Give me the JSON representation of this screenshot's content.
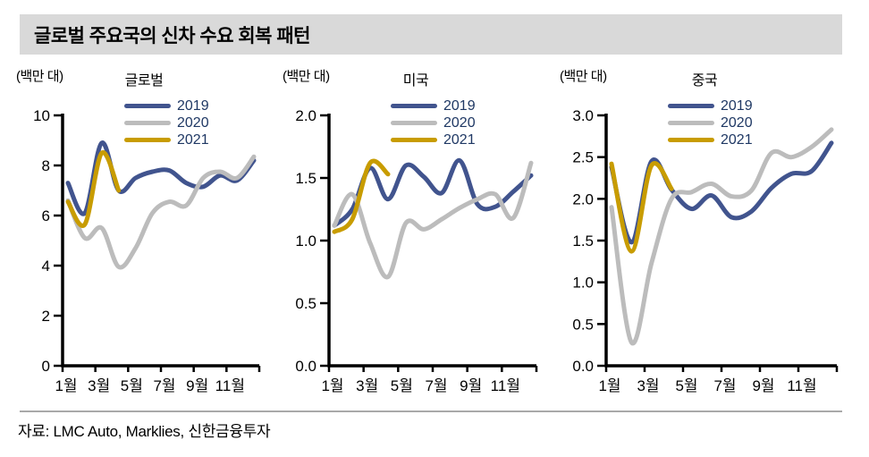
{
  "header": {
    "title": "글로벌 주요국의 신차 수요 회복 패턴"
  },
  "footer": {
    "source": "자료: LMC Auto, Marklies, 신한금융투자"
  },
  "colors": {
    "banner_bg": "#D9D9D9",
    "axis": "#000000",
    "legend_text": "#1F3864",
    "footer_line": "#A9A9A9",
    "series_2019": "#41548E",
    "series_2020": "#BCBCBC",
    "series_2021": "#C89C00"
  },
  "chart_data": [
    {
      "type": "line",
      "title": "글로벌",
      "unit_label": "(백만 대)",
      "x_tick_labels": [
        "1월",
        "3월",
        "5월",
        "7월",
        "9월",
        "11월"
      ],
      "ylim": [
        0,
        10
      ],
      "yticks": [
        0,
        2,
        4,
        6,
        8,
        10
      ],
      "ytick_decimals": 0,
      "grid": false,
      "legend_position": "top-center",
      "series": [
        {
          "name": "2019",
          "color": "#41548E",
          "values": [
            7.3,
            6.1,
            8.9,
            7.0,
            7.5,
            7.75,
            7.8,
            7.3,
            7.15,
            7.6,
            7.4,
            8.2
          ]
        },
        {
          "name": "2020",
          "color": "#BCBCBC",
          "values": [
            6.6,
            5.1,
            5.5,
            3.95,
            4.7,
            6.1,
            6.55,
            6.4,
            7.5,
            7.75,
            7.5,
            8.35
          ]
        },
        {
          "name": "2021",
          "color": "#C89C00",
          "values": [
            6.55,
            5.65,
            8.5,
            7.0
          ]
        }
      ]
    },
    {
      "type": "line",
      "title": "미국",
      "unit_label": "(백만 대)",
      "x_tick_labels": [
        "1월",
        "3월",
        "5월",
        "7월",
        "9월",
        "11월"
      ],
      "ylim": [
        0,
        2.0
      ],
      "yticks": [
        0,
        0.5,
        1.0,
        1.5,
        2.0
      ],
      "ytick_decimals": 1,
      "grid": false,
      "legend_position": "top-center",
      "series": [
        {
          "name": "2019",
          "color": "#41548E",
          "values": [
            1.12,
            1.25,
            1.58,
            1.33,
            1.6,
            1.51,
            1.38,
            1.64,
            1.29,
            1.27,
            1.39,
            1.52
          ]
        },
        {
          "name": "2020",
          "color": "#BCBCBC",
          "values": [
            1.12,
            1.37,
            0.98,
            0.71,
            1.14,
            1.09,
            1.17,
            1.26,
            1.33,
            1.37,
            1.18,
            1.62
          ]
        },
        {
          "name": "2021",
          "color": "#C89C00",
          "values": [
            1.07,
            1.17,
            1.62,
            1.53
          ]
        }
      ]
    },
    {
      "type": "line",
      "title": "중국",
      "unit_label": "(백만 대)",
      "x_tick_labels": [
        "1월",
        "3월",
        "5월",
        "7월",
        "9월",
        "11월"
      ],
      "ylim": [
        0,
        3.0
      ],
      "yticks": [
        0,
        0.5,
        1.0,
        1.5,
        2.0,
        2.5,
        3.0
      ],
      "ytick_decimals": 1,
      "grid": false,
      "legend_position": "top-center",
      "series": [
        {
          "name": "2019",
          "color": "#41548E",
          "values": [
            2.38,
            1.48,
            2.45,
            2.11,
            1.88,
            2.04,
            1.78,
            1.85,
            2.13,
            2.3,
            2.33,
            2.67
          ]
        },
        {
          "name": "2020",
          "color": "#BCBCBC",
          "values": [
            1.9,
            0.28,
            1.23,
            2.0,
            2.08,
            2.18,
            2.03,
            2.1,
            2.55,
            2.5,
            2.62,
            2.83
          ]
        },
        {
          "name": "2021",
          "color": "#C89C00",
          "values": [
            2.42,
            1.37,
            2.4,
            2.12
          ]
        }
      ]
    }
  ]
}
